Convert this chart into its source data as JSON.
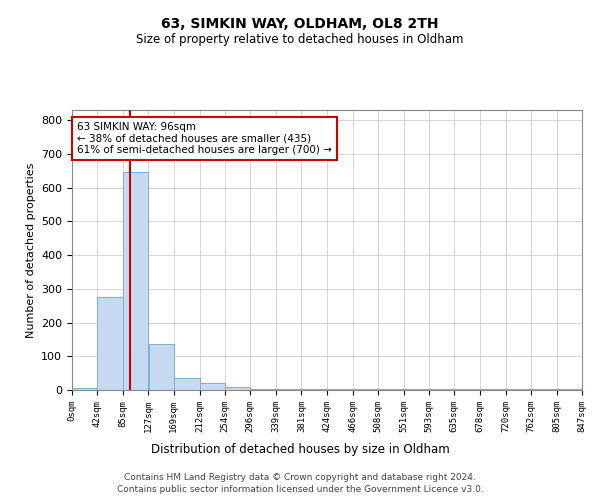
{
  "title1": "63, SIMKIN WAY, OLDHAM, OL8 2TH",
  "title2": "Size of property relative to detached houses in Oldham",
  "xlabel": "Distribution of detached houses by size in Oldham",
  "ylabel": "Number of detached properties",
  "bin_edges": [
    0,
    42,
    85,
    127,
    169,
    212,
    254,
    296,
    339,
    381,
    424,
    466,
    508,
    551,
    593,
    635,
    678,
    720,
    762,
    805,
    847
  ],
  "bar_heights": [
    5,
    275,
    645,
    135,
    35,
    20,
    8,
    4,
    4,
    4,
    4,
    4,
    4,
    4,
    4,
    4,
    4,
    4,
    4,
    4
  ],
  "bar_color": "#c5d9f0",
  "bar_edge_color": "#7ab0d8",
  "property_size": 96,
  "vline_color": "#cc0000",
  "annotation_line1": "63 SIMKIN WAY: 96sqm",
  "annotation_line2": "← 38% of detached houses are smaller (435)",
  "annotation_line3": "61% of semi-detached houses are larger (700) →",
  "annotation_box_color": "#ffffff",
  "annotation_box_edge_color": "#cc0000",
  "ylim": [
    0,
    830
  ],
  "yticks": [
    0,
    100,
    200,
    300,
    400,
    500,
    600,
    700,
    800
  ],
  "footer_line1": "Contains HM Land Registry data © Crown copyright and database right 2024.",
  "footer_line2": "Contains public sector information licensed under the Government Licence v3.0.",
  "bg_color": "#ffffff",
  "grid_color": "#d0d0d0"
}
